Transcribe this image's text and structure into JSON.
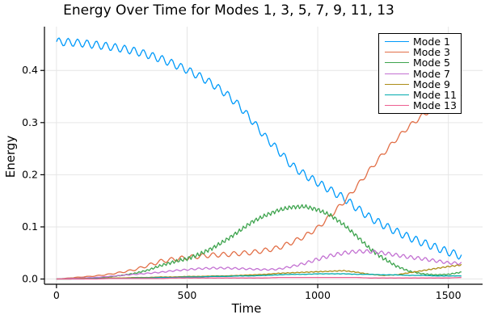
{
  "chart_data": {
    "type": "line",
    "title": "Energy Over Time for Modes 1, 3, 5, 7, 9, 11, 13",
    "xlabel": "Time",
    "ylabel": "Energy",
    "xlim": [
      -46,
      1631
    ],
    "ylim": [
      -0.01,
      0.484
    ],
    "grid": true,
    "legend_position": "top-right",
    "background_color": "#ffffff",
    "grid_color": "#e6e6e6",
    "axis_color": "#000000",
    "xticks": {
      "values": [
        0,
        500,
        1000,
        1500
      ],
      "labels": [
        "0",
        "500",
        "1000",
        "1500"
      ]
    },
    "yticks": {
      "values": [
        0.0,
        0.1,
        0.2,
        0.3,
        0.4
      ],
      "labels": [
        "0.0",
        "0.1",
        "0.2",
        "0.3",
        "0.4"
      ]
    },
    "x": [
      0,
      50,
      100,
      150,
      200,
      250,
      300,
      350,
      400,
      450,
      500,
      550,
      600,
      650,
      700,
      750,
      800,
      850,
      900,
      950,
      1000,
      1050,
      1100,
      1150,
      1200,
      1250,
      1300,
      1350,
      1400,
      1450,
      1500,
      1550
    ],
    "series": [
      {
        "name": "Mode 1",
        "color": "#009AFA",
        "oscillation": {
          "amp": 0.0075,
          "period": 36
        },
        "values": [
          0.455,
          0.454,
          0.452,
          0.449,
          0.446,
          0.442,
          0.437,
          0.43,
          0.422,
          0.412,
          0.401,
          0.388,
          0.373,
          0.355,
          0.332,
          0.303,
          0.272,
          0.246,
          0.218,
          0.2,
          0.185,
          0.17,
          0.155,
          0.136,
          0.118,
          0.104,
          0.091,
          0.08,
          0.07,
          0.061,
          0.052,
          0.044
        ]
      },
      {
        "name": "Mode 3",
        "color": "#E26F47",
        "oscillation": {
          "amp": 0.0045,
          "period": 40
        },
        "values": [
          0.0,
          0.002,
          0.004,
          0.006,
          0.009,
          0.013,
          0.018,
          0.026,
          0.034,
          0.038,
          0.041,
          0.044,
          0.046,
          0.047,
          0.049,
          0.051,
          0.055,
          0.06,
          0.07,
          0.082,
          0.098,
          0.122,
          0.148,
          0.178,
          0.21,
          0.24,
          0.268,
          0.293,
          0.313,
          0.33,
          0.343,
          0.352
        ]
      },
      {
        "name": "Mode 5",
        "color": "#3EA44E",
        "oscillation": {
          "amp": 0.004,
          "period": 16
        },
        "values": [
          0.0,
          0.0,
          0.001,
          0.002,
          0.004,
          0.007,
          0.011,
          0.017,
          0.026,
          0.033,
          0.039,
          0.048,
          0.06,
          0.075,
          0.092,
          0.11,
          0.122,
          0.132,
          0.138,
          0.139,
          0.133,
          0.122,
          0.104,
          0.082,
          0.058,
          0.04,
          0.025,
          0.015,
          0.01,
          0.008,
          0.009,
          0.013
        ]
      },
      {
        "name": "Mode 7",
        "color": "#C371D2",
        "oscillation": {
          "amp": 0.0035,
          "period": 28
        },
        "values": [
          0.0,
          0.001,
          0.002,
          0.003,
          0.005,
          0.007,
          0.009,
          0.011,
          0.013,
          0.016,
          0.018,
          0.02,
          0.021,
          0.021,
          0.02,
          0.019,
          0.018,
          0.019,
          0.024,
          0.03,
          0.038,
          0.045,
          0.05,
          0.053,
          0.053,
          0.05,
          0.046,
          0.042,
          0.039,
          0.035,
          0.031,
          0.03
        ]
      },
      {
        "name": "Mode 9",
        "color": "#AC8D18",
        "oscillation": {
          "amp": 0.002,
          "period": 18
        },
        "values": [
          0.0,
          0.0,
          0.001,
          0.001,
          0.002,
          0.002,
          0.003,
          0.003,
          0.004,
          0.004,
          0.005,
          0.005,
          0.006,
          0.006,
          0.007,
          0.008,
          0.009,
          0.011,
          0.012,
          0.013,
          0.014,
          0.015,
          0.016,
          0.013,
          0.009,
          0.007,
          0.008,
          0.012,
          0.016,
          0.02,
          0.024,
          0.027
        ]
      },
      {
        "name": "Mode 11",
        "color": "#00AAAE",
        "oscillation": {
          "amp": 0.0012,
          "period": 22
        },
        "values": [
          0.0,
          0.0,
          0.0,
          0.001,
          0.001,
          0.001,
          0.002,
          0.002,
          0.003,
          0.003,
          0.004,
          0.004,
          0.005,
          0.005,
          0.006,
          0.006,
          0.007,
          0.008,
          0.009,
          0.009,
          0.01,
          0.01,
          0.01,
          0.009,
          0.009,
          0.008,
          0.008,
          0.007,
          0.007,
          0.006,
          0.006,
          0.006
        ]
      },
      {
        "name": "Mode 13",
        "color": "#ED5E92",
        "oscillation": {
          "amp": 0.0006,
          "period": 30
        },
        "values": [
          0.0,
          0.0,
          0.0,
          0.0,
          0.001,
          0.001,
          0.001,
          0.001,
          0.001,
          0.002,
          0.002,
          0.002,
          0.002,
          0.002,
          0.002,
          0.002,
          0.002,
          0.003,
          0.003,
          0.003,
          0.003,
          0.003,
          0.003,
          0.003,
          0.002,
          0.002,
          0.002,
          0.002,
          0.002,
          0.002,
          0.002,
          0.003
        ]
      }
    ]
  }
}
